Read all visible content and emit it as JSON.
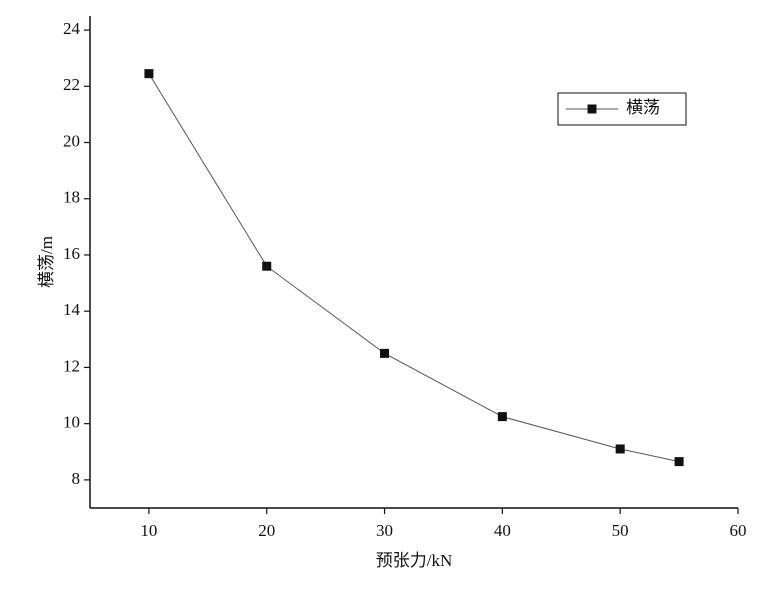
{
  "chart_data": {
    "type": "line",
    "xlabel": "预张力/kN",
    "ylabel": "横荡/m",
    "x": [
      10,
      20,
      30,
      40,
      50,
      55
    ],
    "series": [
      {
        "name": "横荡",
        "color": "#111111",
        "values": [
          22.45,
          15.6,
          12.5,
          10.25,
          9.1,
          8.65
        ]
      }
    ],
    "xlim": [
      5,
      60
    ],
    "xticks": [
      10,
      20,
      30,
      40,
      50,
      60
    ],
    "ylim": [
      7,
      24.5
    ],
    "yticks": [
      8,
      10,
      12,
      14,
      16,
      18,
      20,
      22,
      24
    ],
    "legend": "top-right",
    "grid": false
  }
}
